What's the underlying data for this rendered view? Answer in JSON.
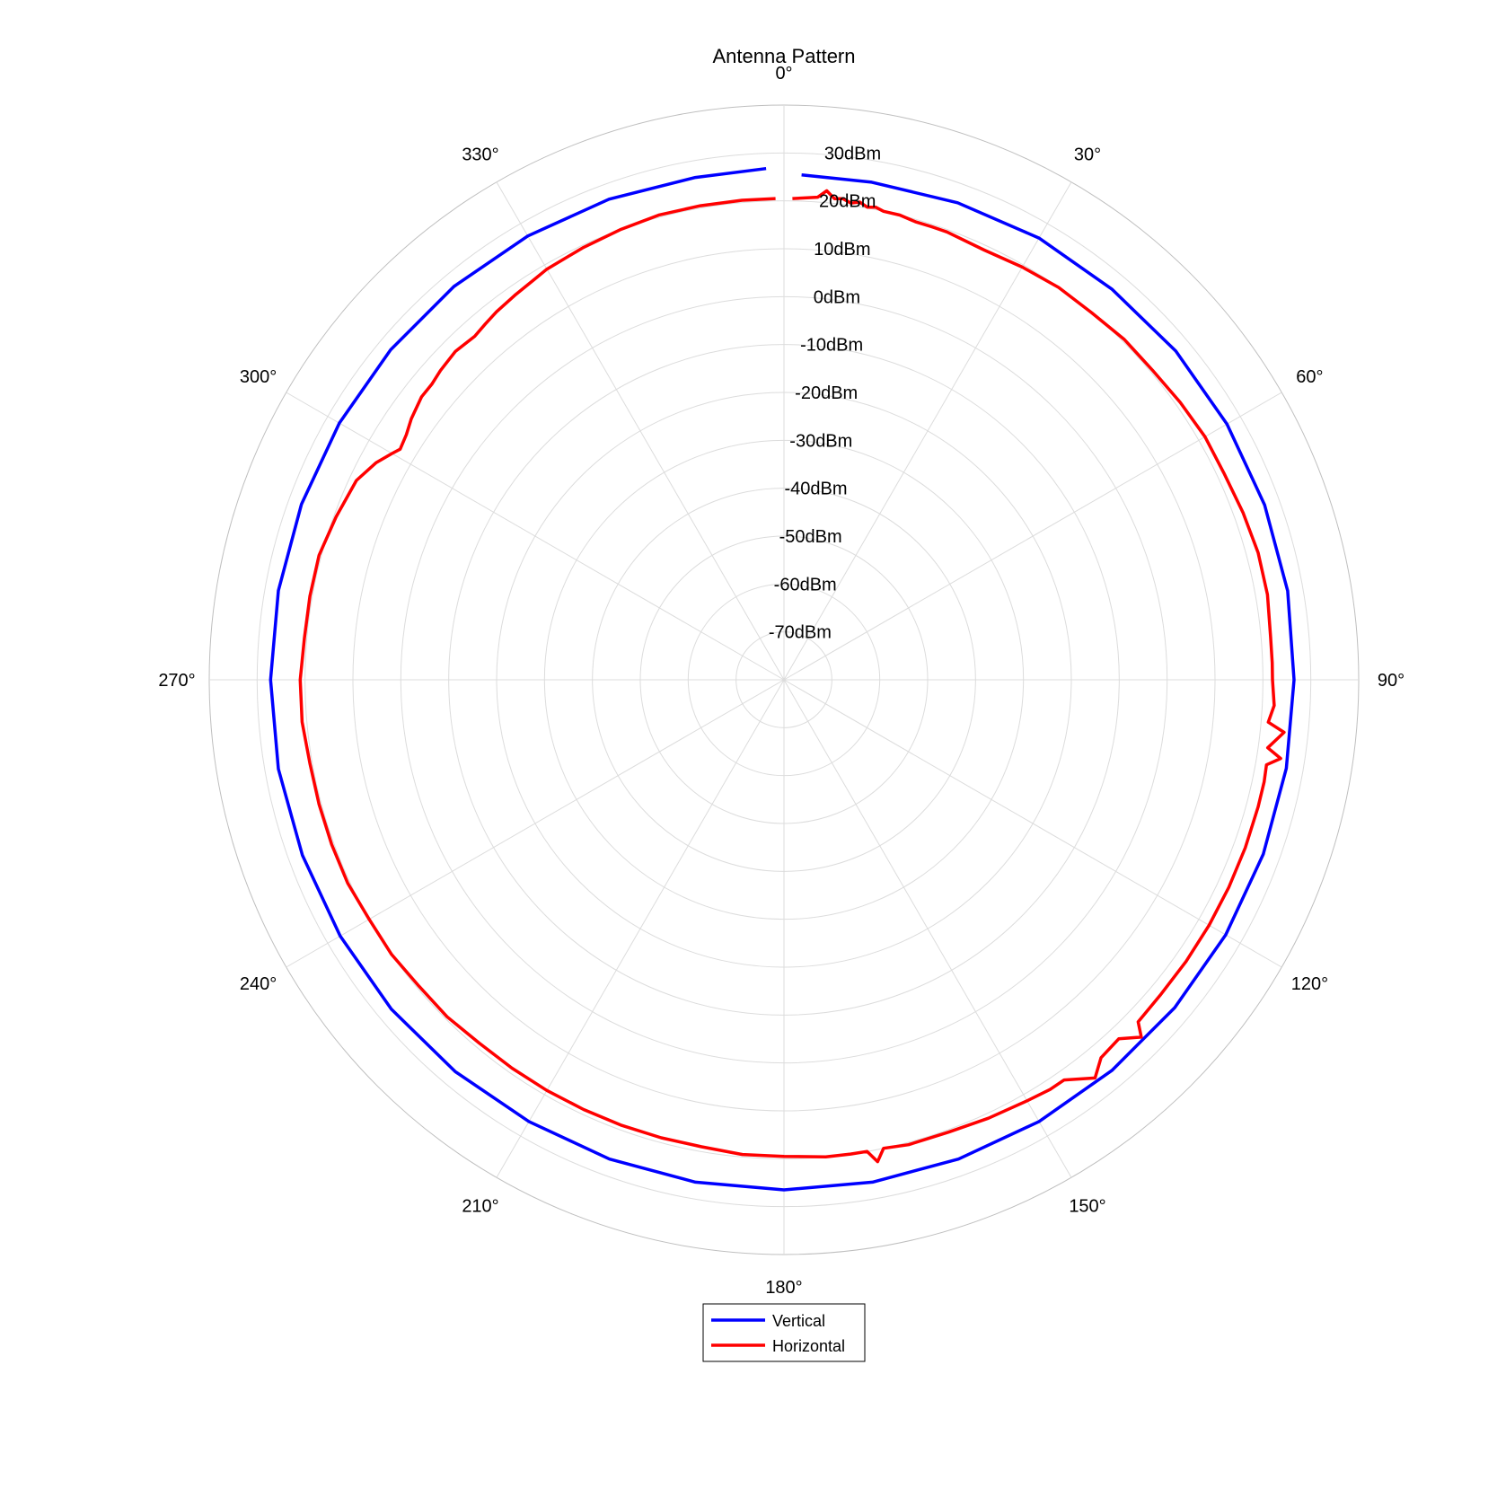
{
  "chart_data": {
    "type": "polar-line",
    "title": "Antenna Pattern",
    "theta_zero": "top",
    "theta_direction": "clockwise",
    "theta_ticks": [
      "0°",
      "30°",
      "60°",
      "90°",
      "120°",
      "150°",
      "180°",
      "210°",
      "240°",
      "270°",
      "300°",
      "330°"
    ],
    "rlim": [
      -80,
      40
    ],
    "r_ticks": [
      "30dBm",
      "20dBm",
      "10dBm",
      "0dBm",
      "-10dBm",
      "-20dBm",
      "-30dBm",
      "-40dBm",
      "-50dBm",
      "-60dBm",
      "-70dBm"
    ],
    "r_tick_values": [
      30,
      20,
      10,
      0,
      -10,
      -20,
      -30,
      -40,
      -50,
      -60,
      -70
    ],
    "grid": true,
    "legend_placement": "bottom",
    "series": [
      {
        "name": "Vertical",
        "color": "#0000ff",
        "theta": [
          2,
          10,
          20,
          30,
          40,
          50,
          60,
          70,
          80,
          90,
          100,
          110,
          120,
          130,
          140,
          150,
          160,
          170,
          180,
          190,
          200,
          210,
          220,
          230,
          240,
          250,
          260,
          270,
          280,
          290,
          300,
          310,
          320,
          330,
          340,
          350,
          358
        ],
        "r": [
          25.5,
          25.5,
          26,
          26.5,
          26.5,
          26.8,
          26.8,
          26.8,
          26.8,
          26.5,
          26.5,
          26.5,
          26.5,
          26.5,
          26.5,
          26.5,
          26.5,
          26.5,
          26.5,
          26.5,
          26.5,
          26.5,
          26.8,
          27,
          27,
          27,
          27.2,
          27.2,
          27.2,
          27.2,
          27.2,
          27.2,
          27.2,
          27,
          26.8,
          26.5,
          26.8
        ]
      },
      {
        "name": "Horizontal",
        "color": "#ff0000",
        "theta": [
          1,
          4,
          5,
          6,
          7,
          8,
          9,
          10,
          11,
          12,
          14,
          16,
          18,
          20,
          25,
          30,
          35,
          40,
          45,
          50,
          55,
          60,
          65,
          70,
          75,
          80,
          85,
          88,
          90,
          93,
          95,
          96,
          98,
          99,
          100,
          102,
          105,
          110,
          115,
          120,
          125,
          130,
          134,
          135,
          137,
          140,
          142,
          145,
          147,
          150,
          155,
          160,
          165,
          168,
          169,
          170,
          172,
          175,
          180,
          185,
          190,
          195,
          200,
          205,
          210,
          215,
          220,
          225,
          230,
          235,
          240,
          245,
          250,
          255,
          260,
          265,
          270,
          275,
          280,
          285,
          290,
          295,
          298,
          300,
          301,
          303,
          305,
          308,
          310,
          312,
          315,
          318,
          320,
          322,
          325,
          328,
          330,
          335,
          340,
          345,
          350,
          355,
          359
        ],
        "r": [
          20.5,
          21,
          22.5,
          21,
          21.2,
          20.5,
          21,
          20.2,
          20.5,
          20,
          20,
          19.5,
          19.5,
          19.5,
          19,
          19.5,
          20,
          20,
          20.5,
          20.5,
          21,
          21.5,
          21.5,
          22,
          22.5,
          22.5,
          22,
          22,
          22,
          22.5,
          21.5,
          25,
          22,
          25,
          22.3,
          22.5,
          22.5,
          22.5,
          22.5,
          22.5,
          22.5,
          22.5,
          22.8,
          25.5,
          22.5,
          23,
          25.5,
          22,
          22,
          21.5,
          21,
          20.5,
          20.5,
          20,
          22.5,
          20,
          20,
          20,
          19.5,
          19.5,
          19,
          19,
          19,
          19,
          19,
          19,
          19,
          19.5,
          19.5,
          20,
          20,
          20.5,
          20.5,
          20.5,
          20.5,
          21,
          21,
          20.5,
          20.5,
          20.5,
          19.5,
          18.5,
          16.5,
          14.5,
          13.5,
          14,
          15,
          16,
          16,
          16.5,
          17,
          16.5,
          17,
          17.5,
          18,
          18.5,
          19,
          19.5,
          20,
          20.5,
          20.5,
          20.5,
          20.5
        ]
      }
    ]
  }
}
